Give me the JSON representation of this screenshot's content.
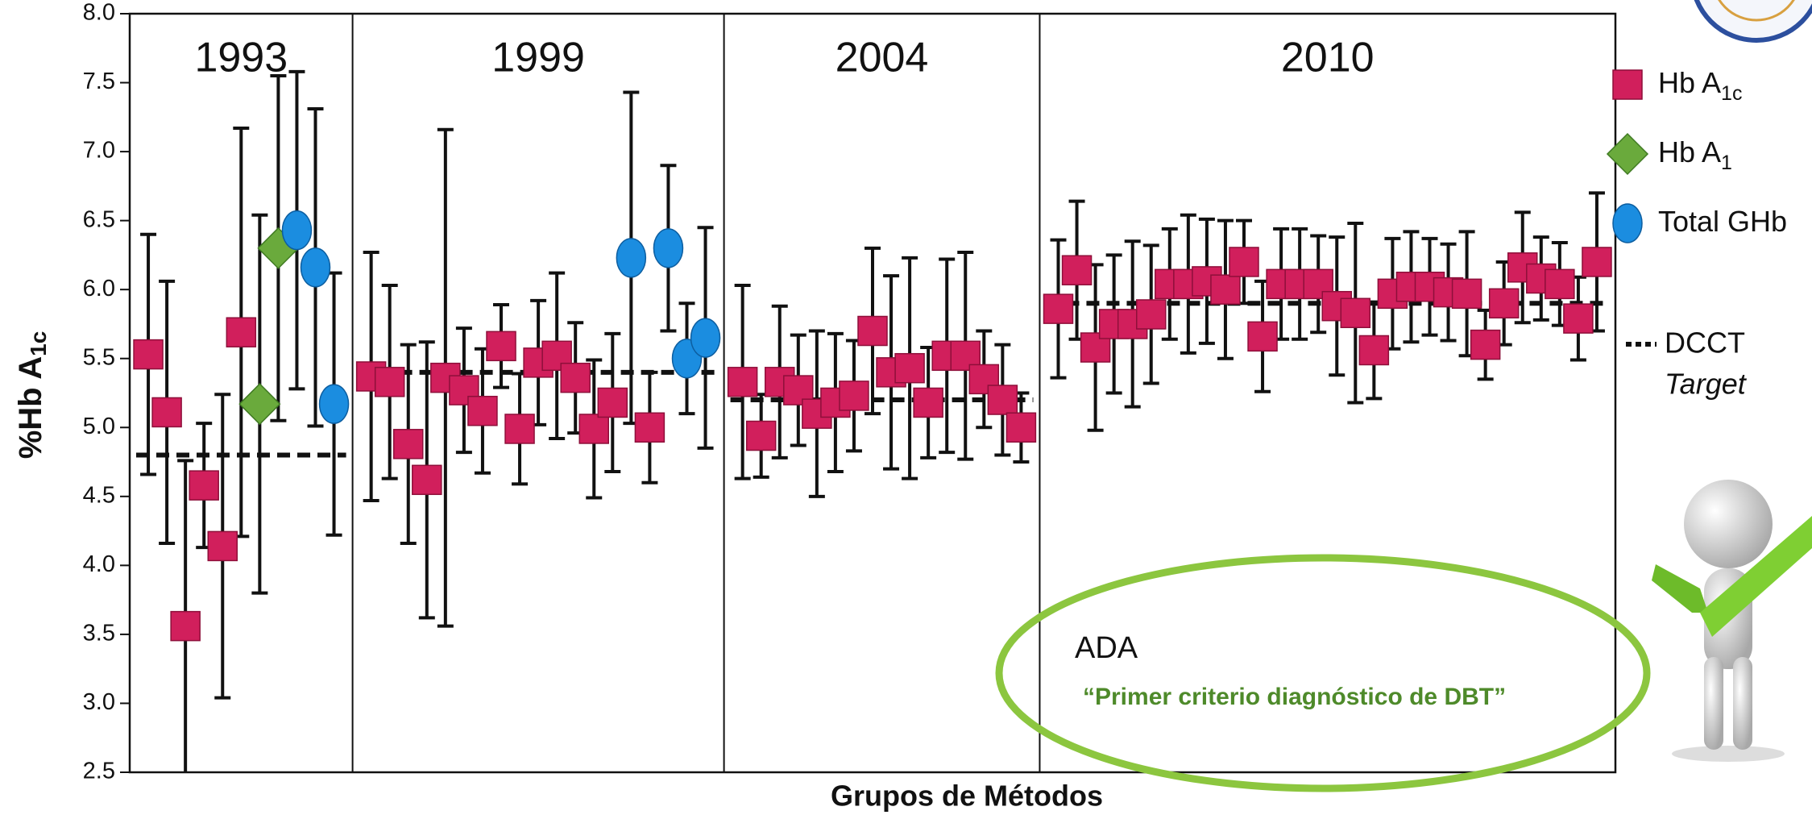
{
  "chart_data": {
    "type": "error-scatter",
    "y_label": "%Hb A",
    "y_label_subscript": "1c",
    "x_label": "Grupos de Métodos",
    "ylim": [
      2.5,
      8.0
    ],
    "yticks": [
      2.5,
      {
        "value": 3,
        "label": "3.0"
      },
      3.5,
      {
        "value": 4,
        "label": "4.0"
      },
      4.5,
      {
        "value": 5,
        "label": "5.0"
      },
      5.5,
      {
        "value": 6,
        "label": "6.0"
      },
      6.5,
      {
        "value": 7,
        "label": "7.0"
      },
      7.5,
      {
        "value": 8,
        "label": "8.0"
      }
    ],
    "legend": [
      {
        "name": "Hb A",
        "subscript": "1c",
        "color": "#d11f5c",
        "marker": "square"
      },
      {
        "name": "Hb A",
        "subscript": "1",
        "color": "#6aaa3c",
        "marker": "diamond"
      },
      {
        "name": "Total GHb",
        "color": "#1b8de0",
        "marker": "ellipse"
      }
    ],
    "target_label": [
      "DCCT",
      "Target"
    ],
    "groups": [
      {
        "label": "1993",
        "target": 4.8,
        "markers": [
          0,
          0,
          0,
          0,
          0,
          0,
          1,
          1,
          2,
          2,
          2
        ],
        "values": [
          5.53,
          5.11,
          3.56,
          4.58,
          4.14,
          5.69,
          5.17,
          6.3,
          6.43,
          6.16,
          5.17
        ],
        "errors": [
          0.87,
          0.95,
          1.2,
          0.45,
          1.1,
          1.48,
          1.37,
          1.25,
          1.15,
          1.15,
          0.95
        ]
      },
      {
        "label": "1999",
        "target": 5.4,
        "markers": [
          0,
          0,
          0,
          0,
          0,
          0,
          0,
          0,
          0,
          0,
          0,
          0,
          0,
          0,
          2,
          0,
          2,
          2,
          2
        ],
        "values": [
          5.37,
          5.33,
          4.88,
          4.62,
          5.36,
          5.27,
          5.12,
          5.59,
          4.99,
          5.47,
          5.52,
          5.36,
          4.99,
          5.18,
          6.23,
          5.0,
          6.3,
          5.5,
          5.65
        ],
        "errors": [
          0.9,
          0.7,
          0.72,
          1.0,
          1.8,
          0.45,
          0.45,
          0.3,
          0.4,
          0.45,
          0.6,
          0.4,
          0.5,
          0.5,
          1.2,
          0.4,
          0.6,
          0.4,
          0.8
        ]
      },
      {
        "label": "2004",
        "target": 5.2,
        "markers": [
          0,
          0,
          0,
          0,
          0,
          0,
          0,
          0,
          0,
          0,
          0,
          0,
          0,
          0,
          0,
          0
        ],
        "values": [
          5.33,
          4.94,
          5.33,
          5.27,
          5.1,
          5.18,
          5.23,
          5.7,
          5.4,
          5.43,
          5.18,
          5.52,
          5.52,
          5.35,
          5.2,
          5.0
        ],
        "errors": [
          0.7,
          0.3,
          0.55,
          0.4,
          0.6,
          0.5,
          0.4,
          0.6,
          0.7,
          0.8,
          0.4,
          0.7,
          0.75,
          0.35,
          0.4,
          0.25
        ]
      },
      {
        "label": "2010",
        "target": 5.9,
        "markers": [
          0,
          0,
          0,
          0,
          0,
          0,
          0,
          0,
          0,
          0,
          0,
          0,
          0,
          0,
          0,
          0,
          0,
          0,
          0,
          0,
          0,
          0,
          0,
          0,
          0,
          0,
          0,
          0,
          0,
          0
        ],
        "values": [
          5.86,
          6.14,
          5.58,
          5.75,
          5.75,
          5.82,
          6.04,
          6.04,
          6.06,
          6.0,
          6.2,
          5.66,
          6.04,
          6.04,
          6.04,
          5.88,
          5.83,
          5.56,
          5.97,
          6.02,
          6.02,
          5.98,
          5.97,
          5.6,
          5.9,
          6.16,
          6.08,
          6.04,
          5.79,
          6.2
        ],
        "errors": [
          0.5,
          0.5,
          0.6,
          0.5,
          0.6,
          0.5,
          0.4,
          0.5,
          0.45,
          0.5,
          0.3,
          0.4,
          0.4,
          0.4,
          0.35,
          0.5,
          0.65,
          0.35,
          0.4,
          0.4,
          0.35,
          0.35,
          0.45,
          0.25,
          0.3,
          0.4,
          0.3,
          0.3,
          0.3,
          0.5
        ]
      }
    ],
    "annotation": {
      "title": "ADA",
      "quote": "“Primer criterio diagnóstico de  DBT”"
    }
  }
}
